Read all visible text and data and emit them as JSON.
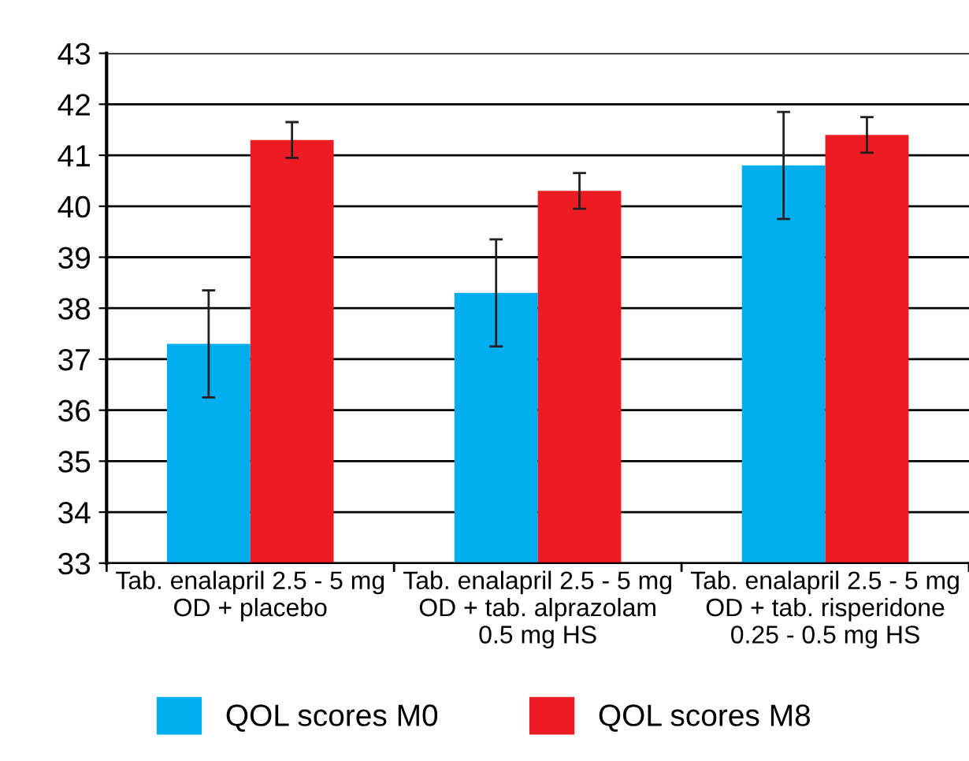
{
  "chart_data": {
    "type": "bar",
    "categories": [
      "Tab. enalapril 2.5 - 5 mg\nOD + placebo",
      "Tab. enalapril 2.5 - 5 mg\nOD + tab. alprazolam\n0.5 mg HS",
      "Tab. enalapril 2.5 - 5 mg\nOD + tab. risperidone\n0.25 - 0.5 mg HS"
    ],
    "series": [
      {
        "name": "QOL scores M0",
        "color": "#00adef",
        "values": [
          37.3,
          38.3,
          40.8
        ],
        "errors": [
          1.05,
          1.05,
          1.05
        ]
      },
      {
        "name": "QOL scores M8",
        "color": "#ed1c24",
        "values": [
          41.3,
          40.3,
          41.4
        ],
        "errors": [
          0.35,
          0.35,
          0.35
        ]
      }
    ],
    "ylim": [
      33,
      43
    ],
    "yticks": [
      33,
      34,
      35,
      36,
      37,
      38,
      39,
      40,
      41,
      42,
      43
    ],
    "grid": "y",
    "legend": "bottom"
  }
}
